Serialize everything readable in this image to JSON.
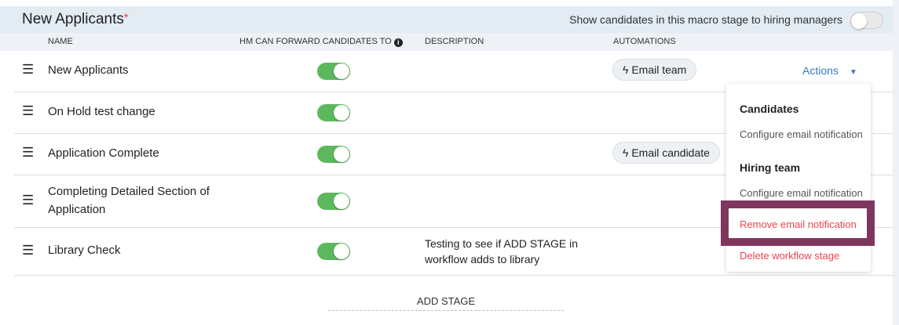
{
  "header": {
    "title": "New Applicants",
    "required_mark": "*",
    "show_hm_label": "Show candidates in this macro stage to hiring managers",
    "show_hm_enabled": false
  },
  "columns": {
    "name": "NAME",
    "hm_forward": "HM CAN FORWARD CANDIDATES TO",
    "description": "DESCRIPTION",
    "automations": "AUTOMATIONS"
  },
  "rows": [
    {
      "name": "New Applicants",
      "hm_forward": true,
      "description": "",
      "automation": "Email team"
    },
    {
      "name": "On Hold test change",
      "hm_forward": true,
      "description": "",
      "automation": ""
    },
    {
      "name": "Application Complete",
      "hm_forward": true,
      "description": "",
      "automation": "Email candidate"
    },
    {
      "name": "Completing Detailed Section of Application",
      "hm_forward": true,
      "description": "",
      "automation": ""
    },
    {
      "name": "Library Check",
      "hm_forward": true,
      "description": "Testing to see if ADD STAGE in workflow adds to library",
      "automation": ""
    }
  ],
  "actions": {
    "label": "Actions"
  },
  "menu": {
    "candidates_heading": "Candidates",
    "candidates_configure": "Configure email notification",
    "hiring_heading": "Hiring team",
    "hiring_configure": "Configure email notification",
    "remove": "Remove email notification",
    "delete": "Delete workflow stage"
  },
  "add_stage": "ADD STAGE",
  "colors": {
    "toggle_on": "#5cb85c",
    "highlight": "#7e365f",
    "danger": "#f0434f",
    "link": "#3a78c2"
  }
}
